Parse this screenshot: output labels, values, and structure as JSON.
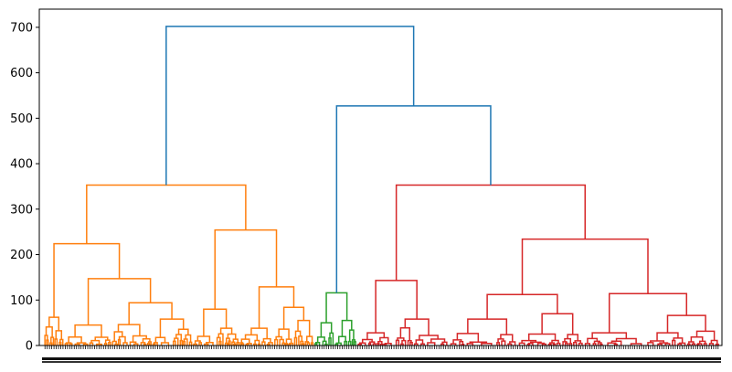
{
  "chart_data": {
    "type": "dendrogram",
    "title": "",
    "xlabel": "",
    "ylabel": "",
    "ylim": [
      0,
      740
    ],
    "y_ticks": [
      0,
      100,
      200,
      300,
      400,
      500,
      600,
      700
    ],
    "y_tick_labels": [
      "0",
      "100",
      "200",
      "300",
      "400",
      "500",
      "600",
      "700"
    ],
    "leaf_count": 300,
    "grid": false,
    "legend": "none",
    "cluster_colors": {
      "C1": "#ff7f0e",
      "C2": "#2ca02c",
      "C3": "#d62728",
      "above_threshold": "#1f77b4"
    },
    "merges": [
      {
        "left": 0.0,
        "right": 1.0,
        "height": 702,
        "color": "above_threshold"
      },
      {
        "left": 0.0,
        "right": 0.4,
        "height": 353,
        "color": "C1"
      },
      {
        "left": 0.4,
        "right": 1.0,
        "height": 527,
        "color": "above_threshold"
      },
      {
        "left": 0.0,
        "right": 0.22,
        "height": 224,
        "color": "C1"
      },
      {
        "left": 0.22,
        "right": 0.4,
        "height": 254,
        "color": "C1"
      },
      {
        "left": 0.4,
        "right": 0.463,
        "height": 116,
        "color": "C2"
      },
      {
        "left": 0.463,
        "right": 1.0,
        "height": 353,
        "color": "C3"
      },
      {
        "left": 0.463,
        "right": 0.6,
        "height": 143,
        "color": "C3"
      },
      {
        "left": 0.6,
        "right": 1.0,
        "height": 234,
        "color": "C3"
      }
    ]
  }
}
